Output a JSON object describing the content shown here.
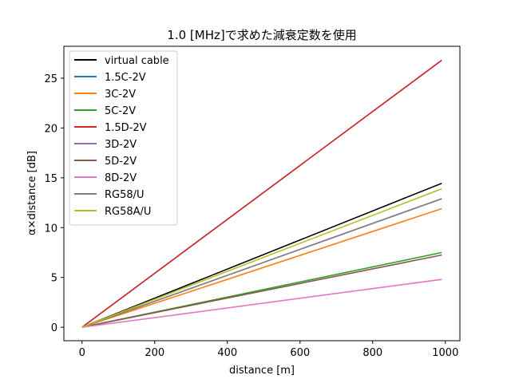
{
  "chart_data": {
    "type": "line",
    "title": "1.0 [MHz]で求めた減衰定数を使用",
    "xlabel": "distance [m]",
    "ylabel": "α×distance [dB]",
    "xlim": [
      -50,
      1040
    ],
    "ylim": [
      -1.35,
      28.2
    ],
    "xticks": [
      0,
      200,
      400,
      600,
      800,
      1000
    ],
    "yticks": [
      0,
      5,
      10,
      15,
      20,
      25
    ],
    "legend_position": "top-left",
    "series": [
      {
        "name": "virtual cable",
        "color": "#000000",
        "x": [
          0,
          990
        ],
        "y": [
          0,
          14.45
        ]
      },
      {
        "name": "1.5C-2V",
        "color": "#1f77b4",
        "x": [
          0,
          990
        ],
        "y": [
          0,
          26.8
        ]
      },
      {
        "name": "3C-2V",
        "color": "#ff7f0e",
        "x": [
          0,
          990
        ],
        "y": [
          0,
          11.9
        ]
      },
      {
        "name": "5C-2V",
        "color": "#2ca02c",
        "x": [
          0,
          990
        ],
        "y": [
          0,
          7.5
        ]
      },
      {
        "name": "1.5D-2V",
        "color": "#d62728",
        "x": [
          0,
          990
        ],
        "y": [
          0,
          26.8
        ]
      },
      {
        "name": "3D-2V",
        "color": "#9467bd",
        "x": [
          0,
          990
        ],
        "y": [
          0,
          12.9
        ]
      },
      {
        "name": "5D-2V",
        "color": "#8c564b",
        "x": [
          0,
          990
        ],
        "y": [
          0,
          7.25
        ]
      },
      {
        "name": "8D-2V",
        "color": "#e377c2",
        "x": [
          0,
          990
        ],
        "y": [
          0,
          4.8
        ]
      },
      {
        "name": "RG58/U",
        "color": "#7f7f7f",
        "x": [
          0,
          990
        ],
        "y": [
          0,
          12.9
        ]
      },
      {
        "name": "RG58A/U",
        "color": "#bcbd22",
        "x": [
          0,
          990
        ],
        "y": [
          0,
          13.9
        ]
      }
    ]
  }
}
